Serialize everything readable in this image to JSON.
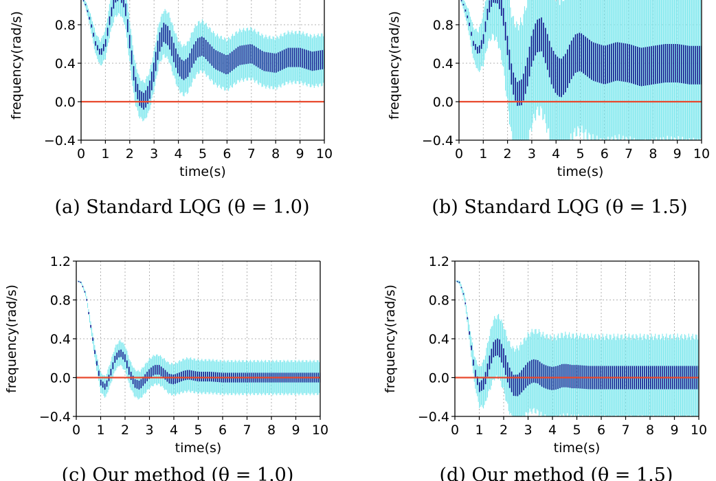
{
  "chart_data": [
    {
      "type": "line",
      "caption": "(a) Standard LQG (θ = 1.0)",
      "xlabel": "time(s)",
      "ylabel": "frequency(rad/s)",
      "xlim": [
        0,
        10
      ],
      "ylim": [
        -0.4,
        1.2
      ],
      "xticks": [
        "0",
        "1",
        "2",
        "3",
        "4",
        "5",
        "6",
        "7",
        "8",
        "9",
        "10"
      ],
      "yticks": [
        "−0.4",
        "0.0",
        "0.4",
        "0.8"
      ],
      "grid": true,
      "reference_line": 0.0,
      "series": [
        {
          "role": "mean",
          "x": [
            0,
            0.2,
            0.4,
            0.6,
            0.8,
            1.0,
            1.2,
            1.4,
            1.6,
            1.8,
            2.0,
            2.2,
            2.4,
            2.6,
            2.8,
            3.0,
            3.2,
            3.4,
            3.6,
            3.8,
            4.0,
            4.2,
            4.4,
            4.6,
            4.8,
            5.0,
            5.5,
            6.0,
            6.5,
            7.0,
            7.5,
            8.0,
            8.5,
            9.0,
            9.5,
            10.0
          ],
          "y": [
            1.1,
            1.0,
            0.82,
            0.6,
            0.5,
            0.6,
            0.88,
            1.08,
            1.12,
            1.02,
            0.62,
            0.22,
            0.04,
            0.0,
            0.1,
            0.32,
            0.6,
            0.72,
            0.68,
            0.52,
            0.38,
            0.32,
            0.36,
            0.48,
            0.56,
            0.58,
            0.44,
            0.38,
            0.48,
            0.5,
            0.42,
            0.4,
            0.46,
            0.46,
            0.42,
            0.44
          ]
        },
        {
          "role": "std-band",
          "x": [
            0,
            0.5,
            1.0,
            1.5,
            2.0,
            2.5,
            3.0,
            3.5,
            4.0,
            4.5,
            5.0,
            5.5,
            6.0,
            6.5,
            7.0,
            7.5,
            8.0,
            8.5,
            9.0,
            9.5,
            10.0
          ],
          "y": [
            0.0,
            0.1,
            0.15,
            0.2,
            0.22,
            0.2,
            0.2,
            0.24,
            0.25,
            0.26,
            0.26,
            0.26,
            0.26,
            0.26,
            0.26,
            0.26,
            0.26,
            0.26,
            0.26,
            0.26,
            0.26
          ]
        },
        {
          "role": "spread-inner",
          "x": [
            0,
            0.5,
            1.0,
            2.0,
            3.0,
            4.0,
            5.0,
            6.0,
            7.0,
            8.0,
            9.0,
            10.0
          ],
          "y": [
            0.0,
            0.02,
            0.04,
            0.07,
            0.1,
            0.1,
            0.1,
            0.1,
            0.1,
            0.1,
            0.1,
            0.1
          ]
        }
      ]
    },
    {
      "type": "line",
      "caption": "(b) Standard LQG (θ = 1.5)",
      "xlabel": "time(s)",
      "ylabel": "frequency(rad/s)",
      "xlim": [
        0,
        10
      ],
      "ylim": [
        -0.4,
        1.2
      ],
      "xticks": [
        "0",
        "1",
        "2",
        "3",
        "4",
        "5",
        "6",
        "7",
        "8",
        "9",
        "10"
      ],
      "yticks": [
        "−0.4",
        "0.0",
        "0.4",
        "0.8"
      ],
      "grid": true,
      "reference_line": 0.0,
      "series": [
        {
          "role": "mean",
          "x": [
            0,
            0.2,
            0.4,
            0.6,
            0.8,
            1.0,
            1.2,
            1.4,
            1.6,
            1.8,
            2.0,
            2.2,
            2.4,
            2.6,
            2.8,
            3.0,
            3.2,
            3.4,
            3.6,
            3.8,
            4.0,
            4.2,
            4.4,
            4.6,
            4.8,
            5.0,
            5.5,
            6.0,
            6.5,
            7.0,
            7.5,
            8.0,
            8.5,
            9.0,
            9.5,
            10.0
          ],
          "y": [
            1.1,
            1.0,
            0.84,
            0.6,
            0.52,
            0.64,
            0.95,
            1.1,
            1.1,
            0.94,
            0.58,
            0.22,
            0.08,
            0.1,
            0.28,
            0.54,
            0.68,
            0.7,
            0.56,
            0.38,
            0.28,
            0.24,
            0.3,
            0.42,
            0.5,
            0.52,
            0.42,
            0.38,
            0.42,
            0.4,
            0.36,
            0.38,
            0.4,
            0.4,
            0.38,
            0.38
          ]
        },
        {
          "role": "std-band",
          "x": [
            0,
            0.5,
            1.0,
            1.5,
            2.0,
            2.5,
            3.0,
            3.5,
            4.0,
            4.5,
            5.0,
            5.5,
            6.0,
            6.5,
            7.0,
            7.5,
            8.0,
            8.5,
            9.0,
            9.5,
            10.0
          ],
          "y": [
            0.0,
            0.14,
            0.26,
            0.45,
            0.6,
            0.72,
            0.78,
            0.8,
            0.82,
            0.82,
            0.82,
            0.82,
            0.82,
            0.82,
            0.82,
            0.82,
            0.82,
            0.82,
            0.82,
            0.82,
            0.82
          ]
        },
        {
          "role": "spread-inner",
          "x": [
            0,
            0.5,
            1.0,
            2.0,
            3.0,
            4.0,
            5.0,
            6.0,
            7.0,
            8.0,
            9.0,
            10.0
          ],
          "y": [
            0.0,
            0.02,
            0.05,
            0.1,
            0.16,
            0.2,
            0.2,
            0.2,
            0.2,
            0.2,
            0.2,
            0.2
          ]
        }
      ]
    },
    {
      "type": "line",
      "caption": "(c) Our method (θ = 1.0)",
      "xlabel": "time(s)",
      "ylabel": "frequency(rad/s)",
      "xlim": [
        0,
        10
      ],
      "ylim": [
        -0.4,
        1.2
      ],
      "xticks": [
        "0",
        "1",
        "2",
        "3",
        "4",
        "5",
        "6",
        "7",
        "8",
        "9",
        "10"
      ],
      "yticks": [
        "1.2",
        "0.8",
        "0.4",
        "0.0",
        "−0.4"
      ],
      "grid": true,
      "reference_line": 0.0,
      "series": [
        {
          "role": "mean",
          "x": [
            0,
            0.2,
            0.4,
            0.6,
            0.8,
            1.0,
            1.2,
            1.4,
            1.6,
            1.8,
            2.0,
            2.2,
            2.4,
            2.6,
            2.8,
            3.0,
            3.2,
            3.4,
            3.6,
            3.8,
            4.0,
            4.2,
            4.4,
            4.6,
            4.8,
            5.0,
            5.5,
            6.0,
            6.5,
            7.0,
            7.5,
            8.0,
            8.5,
            9.0,
            9.5,
            10.0
          ],
          "y": [
            1.0,
            0.98,
            0.85,
            0.52,
            0.2,
            -0.05,
            -0.1,
            0.04,
            0.2,
            0.26,
            0.2,
            0.04,
            -0.06,
            -0.08,
            -0.02,
            0.04,
            0.08,
            0.08,
            0.04,
            -0.01,
            -0.02,
            0.0,
            0.02,
            0.03,
            0.02,
            0.01,
            0.01,
            0.0,
            0.0,
            0.0,
            0.0,
            0.0,
            0.0,
            0.0,
            0.0,
            0.0
          ]
        },
        {
          "role": "std-band",
          "x": [
            0,
            0.5,
            1.0,
            1.5,
            2.0,
            2.5,
            3.0,
            3.5,
            4.0,
            4.5,
            5.0,
            5.5,
            6.0,
            6.5,
            7.0,
            7.5,
            8.0,
            8.5,
            9.0,
            9.5,
            10.0
          ],
          "y": [
            0.0,
            0.03,
            0.1,
            0.12,
            0.13,
            0.14,
            0.15,
            0.15,
            0.16,
            0.17,
            0.17,
            0.17,
            0.17,
            0.17,
            0.17,
            0.17,
            0.17,
            0.17,
            0.17,
            0.17,
            0.17
          ]
        },
        {
          "role": "spread-inner",
          "x": [
            0,
            0.5,
            1.0,
            2.0,
            3.0,
            4.0,
            5.0,
            6.0,
            7.0,
            8.0,
            9.0,
            10.0
          ],
          "y": [
            0.0,
            0.01,
            0.03,
            0.04,
            0.05,
            0.05,
            0.05,
            0.05,
            0.05,
            0.05,
            0.05,
            0.05
          ]
        }
      ]
    },
    {
      "type": "line",
      "caption": "(d) Our method (θ = 1.5)",
      "xlabel": "time(s)",
      "ylabel": "frequency(rad/s)",
      "xlim": [
        0,
        10
      ],
      "ylim": [
        -0.4,
        1.2
      ],
      "xticks": [
        "0",
        "1",
        "2",
        "3",
        "4",
        "5",
        "6",
        "7",
        "8",
        "9",
        "10"
      ],
      "yticks": [
        "1.2",
        "0.8",
        "0.4",
        "0.0",
        "−0.4"
      ],
      "grid": true,
      "reference_line": 0.0,
      "series": [
        {
          "role": "mean",
          "x": [
            0,
            0.2,
            0.4,
            0.6,
            0.8,
            1.0,
            1.2,
            1.4,
            1.6,
            1.8,
            2.0,
            2.2,
            2.4,
            2.6,
            2.8,
            3.0,
            3.2,
            3.4,
            3.6,
            3.8,
            4.0,
            4.2,
            4.4,
            4.6,
            4.8,
            5.0,
            5.5,
            6.0,
            6.5,
            7.0,
            7.5,
            8.0,
            8.5,
            9.0,
            9.5,
            10.0
          ],
          "y": [
            1.0,
            0.98,
            0.82,
            0.45,
            0.08,
            -0.1,
            -0.06,
            0.14,
            0.3,
            0.32,
            0.2,
            0.02,
            -0.08,
            -0.08,
            -0.02,
            0.04,
            0.07,
            0.06,
            0.02,
            0.0,
            -0.01,
            0.0,
            0.02,
            0.02,
            0.01,
            0.01,
            0.0,
            0.0,
            0.0,
            0.0,
            0.0,
            0.0,
            0.0,
            0.0,
            0.0,
            0.0
          ]
        },
        {
          "role": "std-band",
          "x": [
            0,
            0.5,
            1.0,
            1.5,
            2.0,
            2.5,
            3.0,
            3.5,
            4.0,
            4.5,
            5.0,
            5.5,
            6.0,
            6.5,
            7.0,
            7.5,
            8.0,
            8.5,
            9.0,
            9.5,
            10.0
          ],
          "y": [
            0.0,
            0.05,
            0.2,
            0.3,
            0.33,
            0.38,
            0.4,
            0.42,
            0.42,
            0.42,
            0.42,
            0.42,
            0.42,
            0.42,
            0.42,
            0.42,
            0.42,
            0.42,
            0.42,
            0.42,
            0.42
          ]
        },
        {
          "role": "spread-inner",
          "x": [
            0,
            0.5,
            1.0,
            2.0,
            3.0,
            4.0,
            5.0,
            6.0,
            7.0,
            8.0,
            9.0,
            10.0
          ],
          "y": [
            0.0,
            0.01,
            0.05,
            0.1,
            0.12,
            0.12,
            0.12,
            0.12,
            0.12,
            0.12,
            0.12,
            0.12
          ]
        }
      ]
    }
  ],
  "colors": {
    "band": "#7fe8ee",
    "inner": "#14148c",
    "reference": "#e8482c",
    "grid": "#b0b0b0"
  }
}
